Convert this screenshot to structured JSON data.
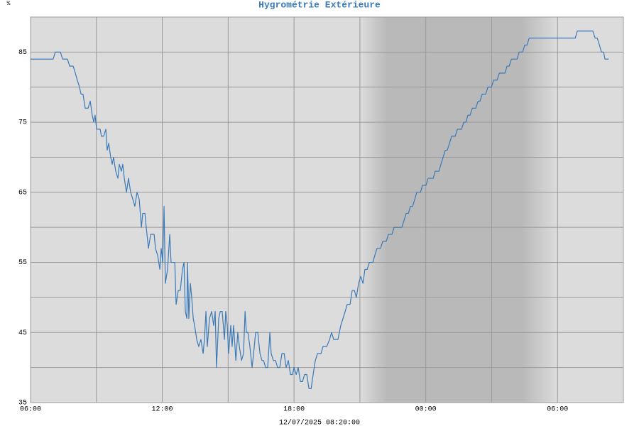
{
  "chart_data": {
    "type": "line",
    "title": "Hygrométrie Extérieure",
    "y_unit": "%",
    "subtitle": "12/07/2025 08:20:00",
    "color": "#3a7ab8",
    "grid": true,
    "xlim": [
      0,
      27
    ],
    "xticks": [
      {
        "value": 0,
        "label": "06:00"
      },
      {
        "value": 6,
        "label": "12:00"
      },
      {
        "value": 12,
        "label": "18:00"
      },
      {
        "value": 18,
        "label": "00:00"
      },
      {
        "value": 24,
        "label": "06:00"
      }
    ],
    "xminor": [
      3,
      9,
      15,
      21
    ],
    "ylim": [
      35,
      90
    ],
    "yticks": [
      35,
      45,
      55,
      65,
      75,
      85
    ],
    "yminor": [
      40,
      50,
      60,
      70,
      80
    ],
    "night": [
      15,
      24
    ],
    "x": [
      0,
      1.03,
      1.13,
      1.36,
      1.46,
      1.68,
      1.78,
      1.94,
      2.04,
      2.13,
      2.23,
      2.3,
      2.39,
      2.49,
      2.62,
      2.72,
      2.81,
      2.88,
      2.94,
      3.01,
      3.17,
      3.23,
      3.33,
      3.43,
      3.49,
      3.56,
      3.65,
      3.72,
      3.78,
      3.88,
      3.98,
      4.04,
      4.14,
      4.2,
      4.27,
      4.37,
      4.46,
      4.56,
      4.66,
      4.75,
      4.85,
      4.95,
      5.05,
      5.11,
      5.21,
      5.27,
      5.37,
      5.47,
      5.63,
      5.69,
      5.79,
      5.89,
      5.95,
      6.02,
      6.08,
      6.14,
      6.24,
      6.34,
      6.4,
      6.57,
      6.63,
      6.73,
      6.82,
      6.92,
      6.99,
      7.05,
      7.12,
      7.15,
      7.21,
      7.28,
      7.34,
      7.41,
      7.47,
      7.57,
      7.66,
      7.76,
      7.86,
      7.92,
      7.99,
      8.05,
      8.15,
      8.25,
      8.34,
      8.41,
      8.47,
      8.57,
      8.64,
      8.73,
      8.83,
      8.89,
      8.96,
      9.02,
      9.12,
      9.18,
      9.25,
      9.35,
      9.44,
      9.51,
      9.61,
      9.7,
      9.77,
      9.83,
      9.9,
      9.99,
      10.09,
      10.16,
      10.25,
      10.35,
      10.45,
      10.54,
      10.61,
      10.71,
      10.8,
      10.9,
      10.96,
      11.06,
      11.16,
      11.25,
      11.35,
      11.45,
      11.55,
      11.64,
      11.74,
      11.84,
      11.93,
      12.0,
      12.1,
      12.19,
      12.29,
      12.39,
      12.48,
      12.58,
      12.68,
      12.78,
      12.87,
      12.97,
      13.07,
      13.23,
      13.32,
      13.49,
      13.62,
      13.71,
      13.81,
      14.0,
      14.13,
      14.23,
      14.33,
      14.42,
      14.55,
      14.65,
      14.75,
      14.84,
      14.94,
      15.04,
      15.14,
      15.23,
      15.33,
      15.43,
      15.59,
      15.68,
      15.78,
      15.94,
      16.04,
      16.2,
      16.3,
      16.46,
      16.56,
      16.91,
      17.01,
      17.11,
      17.21,
      17.3,
      17.4,
      17.5,
      17.59,
      17.76,
      17.85,
      18.01,
      18.11,
      18.34,
      18.43,
      18.6,
      18.69,
      18.79,
      18.89,
      18.98,
      19.08,
      19.18,
      19.34,
      19.44,
      19.63,
      19.73,
      19.83,
      19.92,
      20.02,
      20.12,
      20.28,
      20.38,
      20.47,
      20.57,
      20.73,
      20.83,
      20.99,
      21.09,
      21.25,
      21.35,
      21.61,
      21.7,
      21.8,
      21.9,
      22.16,
      22.25,
      22.41,
      22.51,
      22.61,
      22.71,
      23.03,
      23.67,
      24.16,
      24.81,
      24.9,
      25.61,
      25.71,
      25.81,
      25.91,
      26.0,
      26.1,
      26.16,
      26.33
    ],
    "values": [
      84,
      84,
      85,
      85,
      84,
      84,
      83,
      83,
      82,
      81,
      80,
      79,
      79,
      77,
      77,
      78,
      76,
      75,
      76,
      74,
      74,
      73,
      73,
      74,
      71,
      72,
      70,
      69,
      70,
      68,
      67,
      69,
      68,
      69,
      67,
      65,
      67,
      65,
      64,
      63,
      65,
      64,
      60,
      62,
      62,
      60,
      57,
      59,
      59,
      57,
      56,
      54,
      57,
      55,
      63,
      52,
      54,
      59,
      55,
      55,
      49,
      51,
      51,
      54,
      55,
      48,
      47,
      55,
      47,
      52,
      50,
      47,
      46,
      44,
      43,
      44,
      42,
      44,
      48,
      43,
      47,
      48,
      46,
      48,
      40,
      47,
      48,
      48,
      44,
      48,
      46,
      42,
      46,
      43,
      46,
      41,
      45,
      43,
      41,
      42,
      48,
      45,
      45,
      43,
      40,
      42,
      45,
      45,
      42,
      41,
      41,
      40,
      40,
      45,
      42,
      41,
      41,
      40,
      40,
      42,
      42,
      40,
      41,
      39,
      39,
      40,
      39,
      40,
      38,
      38,
      39,
      39,
      37,
      37,
      39,
      41,
      42,
      42,
      43,
      43,
      44,
      45,
      44,
      44,
      46,
      47,
      48,
      49,
      49,
      51,
      51,
      50,
      52,
      53,
      52,
      54,
      54,
      55,
      55,
      56,
      57,
      57,
      58,
      58,
      59,
      59,
      60,
      60,
      61,
      62,
      62,
      63,
      63,
      64,
      65,
      65,
      66,
      66,
      67,
      67,
      68,
      68,
      69,
      70,
      71,
      71,
      72,
      73,
      73,
      74,
      74,
      75,
      75,
      76,
      76,
      77,
      77,
      78,
      78,
      79,
      79,
      80,
      80,
      81,
      81,
      82,
      82,
      83,
      83,
      84,
      84,
      85,
      85,
      86,
      86,
      87,
      87,
      87,
      87,
      87,
      88,
      88,
      87,
      87,
      86,
      85,
      85,
      84,
      84
    ]
  }
}
